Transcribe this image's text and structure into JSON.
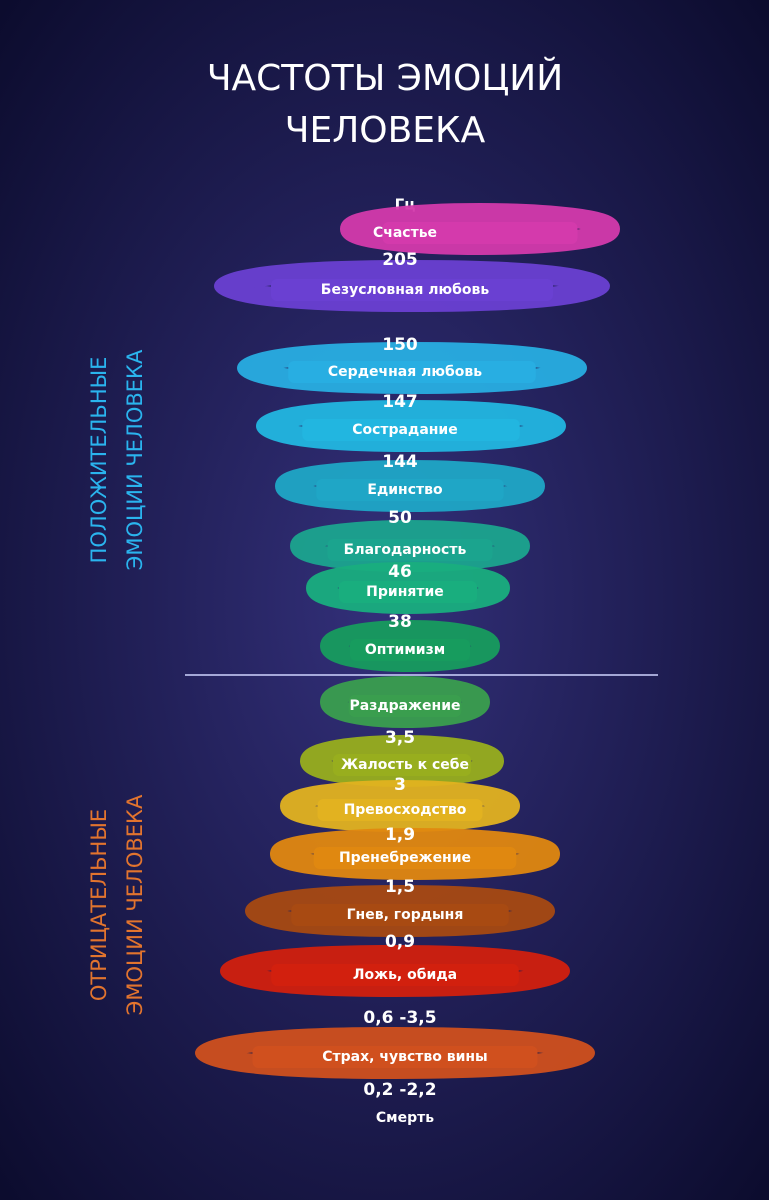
{
  "title": [
    "ЧАСТОТЫ ЭМОЦИЙ",
    "ЧЕЛОВЕКА"
  ],
  "unit": "Гц",
  "positive": {
    "side_label": [
      "ПОЛОЖИТЕЛЬНЫЕ",
      "ЭМОЦИИ ЧЕЛОВЕКА"
    ],
    "color": "#2ab4ee",
    "bands": [
      {
        "label": "Счастье",
        "color": "#d43aac"
      },
      {
        "label": "Безусловная любовь",
        "color": "#6a40d2"
      },
      {
        "label": "Сердечная любовь",
        "color": "#28aee2"
      },
      {
        "label": "Сострадание",
        "color": "#22b6e0"
      },
      {
        "label": "Единство",
        "color": "#1fa6c6"
      },
      {
        "label": "Благодарность",
        "color": "#1ba48e"
      },
      {
        "label": "Принятие",
        "color": "#19ae7e"
      },
      {
        "label": "Оптимизм",
        "color": "#179c5e"
      }
    ],
    "frequencies": [
      "205",
      "150",
      "147",
      "144",
      "50",
      "46",
      "38"
    ]
  },
  "negative": {
    "side_label": [
      "ОТРИЦАТЕЛЬНЫЕ",
      "ЭМОЦИИ ЧЕЛОВЕКА"
    ],
    "color": "#e2742e",
    "bands": [
      {
        "label": "Раздражение",
        "color": "#3a9e4e"
      },
      {
        "label": "Жалость к себе",
        "color": "#98ae1e"
      },
      {
        "label": "Превосходство",
        "color": "#e2b220"
      },
      {
        "label": "Пренебрежение",
        "color": "#e08810"
      },
      {
        "label": "Гнев, гордыня",
        "color": "#a84a12"
      },
      {
        "label": "Ложь, обида",
        "color": "#d2200e"
      },
      {
        "label": "Страх, чувство вины",
        "color": "#d0501e"
      },
      {
        "label": "Смерть",
        "color": "#c8602a"
      }
    ],
    "frequencies": [
      "3,5",
      "3",
      "1,9",
      "1,5",
      "0,9",
      "0,6 -3,5",
      "0,2 -2,2"
    ]
  }
}
